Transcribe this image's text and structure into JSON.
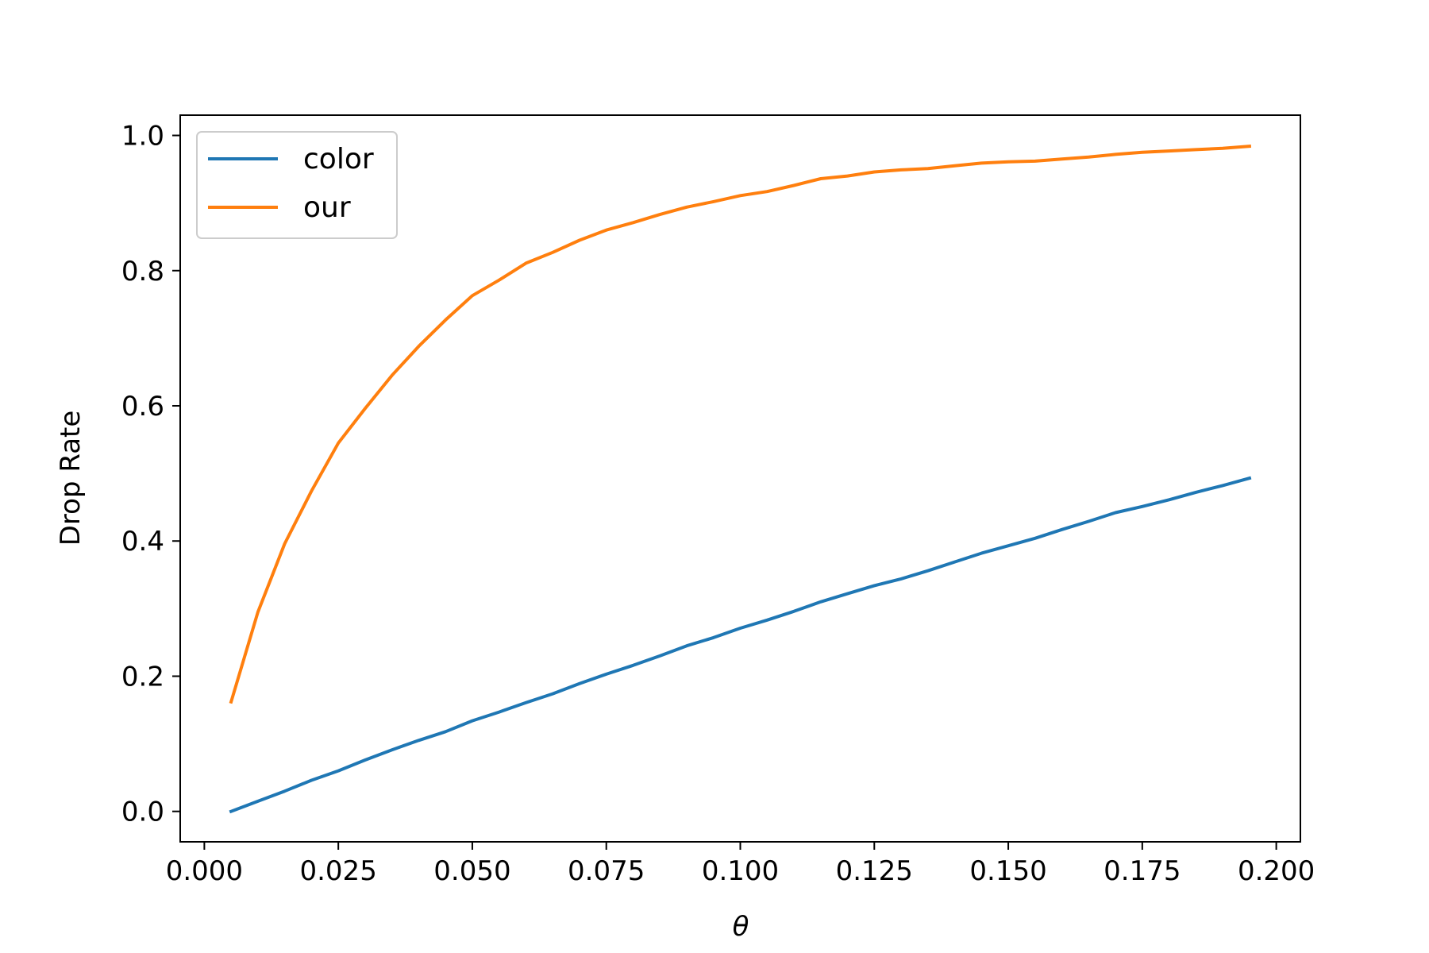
{
  "chart_data": {
    "type": "line",
    "xlabel": "θ",
    "ylabel": "Drop Rate",
    "xlim": [
      -0.0045,
      0.2045
    ],
    "ylim": [
      -0.045,
      1.03
    ],
    "x_ticks": [
      0.0,
      0.025,
      0.05,
      0.075,
      0.1,
      0.125,
      0.15,
      0.175,
      0.2
    ],
    "x_tick_labels": [
      "0.000",
      "0.025",
      "0.050",
      "0.075",
      "0.100",
      "0.125",
      "0.150",
      "0.175",
      "0.200"
    ],
    "y_ticks": [
      0.0,
      0.2,
      0.4,
      0.6,
      0.8,
      1.0
    ],
    "y_tick_labels": [
      "0.0",
      "0.2",
      "0.4",
      "0.6",
      "0.8",
      "1.0"
    ],
    "grid": false,
    "legend_position": "upper-left",
    "x": [
      0.005,
      0.01,
      0.015,
      0.02,
      0.025,
      0.03,
      0.035,
      0.04,
      0.045,
      0.05,
      0.055,
      0.06,
      0.065,
      0.07,
      0.075,
      0.08,
      0.085,
      0.09,
      0.095,
      0.1,
      0.105,
      0.11,
      0.115,
      0.12,
      0.125,
      0.13,
      0.135,
      0.14,
      0.145,
      0.15,
      0.155,
      0.16,
      0.165,
      0.17,
      0.175,
      0.18,
      0.185,
      0.19,
      0.195
    ],
    "series": [
      {
        "name": "color",
        "color": "#1f77b4",
        "values": [
          0.0,
          0.015,
          0.03,
          0.046,
          0.06,
          0.076,
          0.091,
          0.105,
          0.118,
          0.134,
          0.147,
          0.161,
          0.174,
          0.189,
          0.203,
          0.216,
          0.23,
          0.245,
          0.257,
          0.271,
          0.283,
          0.296,
          0.31,
          0.322,
          0.334,
          0.344,
          0.356,
          0.369,
          0.382,
          0.393,
          0.404,
          0.417,
          0.429,
          0.442,
          0.451,
          0.461,
          0.472,
          0.482,
          0.493
        ]
      },
      {
        "name": "our",
        "color": "#ff7f0e",
        "values": [
          0.162,
          0.295,
          0.396,
          0.474,
          0.545,
          0.596,
          0.645,
          0.688,
          0.727,
          0.763,
          0.786,
          0.811,
          0.827,
          0.845,
          0.86,
          0.871,
          0.883,
          0.894,
          0.902,
          0.911,
          0.917,
          0.926,
          0.936,
          0.94,
          0.946,
          0.949,
          0.951,
          0.955,
          0.959,
          0.961,
          0.962,
          0.965,
          0.968,
          0.972,
          0.975,
          0.977,
          0.979,
          0.981,
          0.984
        ]
      }
    ]
  }
}
